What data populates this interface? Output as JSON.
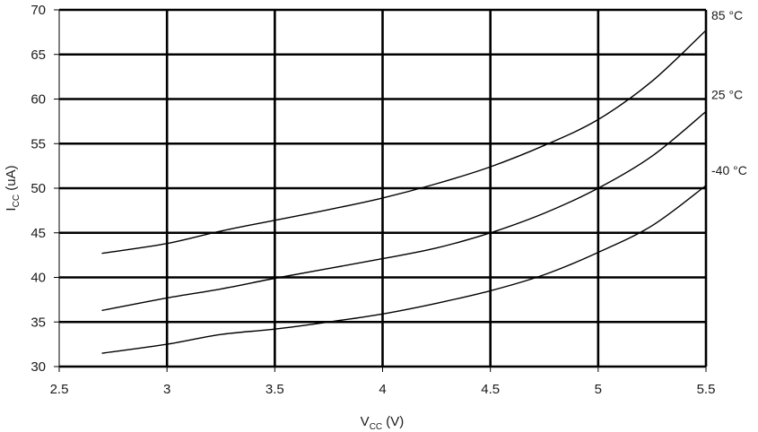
{
  "chart_data": {
    "type": "line",
    "xlabel": {
      "main": "V",
      "sub": "CC",
      "rest": " (V)"
    },
    "ylabel": {
      "main": "I",
      "sub": "CC",
      "rest": " (uA)"
    },
    "xlim": [
      2.5,
      5.5
    ],
    "ylim": [
      30,
      70
    ],
    "xticks": [
      2.5,
      3,
      3.5,
      4,
      4.5,
      5,
      5.5
    ],
    "yticks": [
      30,
      35,
      40,
      45,
      50,
      55,
      60,
      65,
      70
    ],
    "xtick_labels": [
      "2.5",
      "3",
      "3.5",
      "4",
      "4.5",
      "5",
      "5.5"
    ],
    "ytick_labels": [
      "30",
      "35",
      "40",
      "45",
      "50",
      "55",
      "60",
      "65",
      "70"
    ],
    "grid": true,
    "legend": "series labels at right end of lines",
    "series": [
      {
        "name": "85 °C",
        "x": [
          2.7,
          3.0,
          3.25,
          3.5,
          3.75,
          4.0,
          4.25,
          4.5,
          4.75,
          5.0,
          5.25,
          5.5
        ],
        "y": [
          42.7,
          43.8,
          45.2,
          46.4,
          47.6,
          48.9,
          50.5,
          52.4,
          54.8,
          57.7,
          62.0,
          67.7
        ]
      },
      {
        "name": "25 °C",
        "x": [
          2.7,
          3.0,
          3.25,
          3.5,
          3.75,
          4.0,
          4.25,
          4.5,
          4.75,
          5.0,
          5.25,
          5.5
        ],
        "y": [
          36.3,
          37.7,
          38.7,
          39.9,
          41.0,
          42.1,
          43.3,
          45.0,
          47.2,
          50.0,
          53.6,
          58.6
        ]
      },
      {
        "name": "-40 °C",
        "x": [
          2.7,
          3.0,
          3.25,
          3.5,
          3.75,
          4.0,
          4.25,
          4.5,
          4.75,
          5.0,
          5.25,
          5.5
        ],
        "y": [
          31.5,
          32.5,
          33.6,
          34.2,
          35.0,
          35.9,
          37.1,
          38.5,
          40.3,
          42.8,
          45.8,
          50.3
        ]
      }
    ]
  }
}
